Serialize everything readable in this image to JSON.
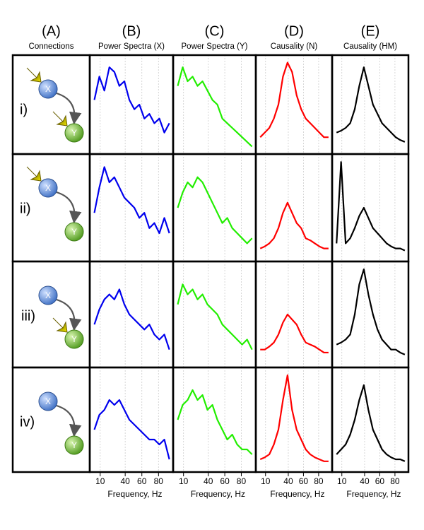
{
  "figure": {
    "columns": [
      {
        "letter": "(A)",
        "title": "Connections"
      },
      {
        "letter": "(B)",
        "title": "Power Spectra (X)"
      },
      {
        "letter": "(C)",
        "title": "Power Spectra (Y)"
      },
      {
        "letter": "(D)",
        "title": "Causality (N)"
      },
      {
        "letter": "(E)",
        "title": "Causality (HM)"
      }
    ],
    "rows": [
      "i)",
      "ii)",
      "iii)",
      "iv)"
    ],
    "nodes": [
      "X",
      "Y"
    ]
  },
  "chart_data": [
    {
      "type": "line",
      "color": "#0000ee",
      "x": [
        3,
        9,
        15,
        21,
        27,
        33,
        39,
        45,
        51,
        57,
        63,
        69,
        75,
        81,
        87,
        93
      ],
      "values": [
        0.55,
        0.8,
        0.65,
        0.9,
        0.85,
        0.7,
        0.75,
        0.55,
        0.45,
        0.5,
        0.35,
        0.4,
        0.3,
        0.35,
        0.2,
        0.3
      ],
      "xlim": [
        0,
        95
      ],
      "ylim": [
        0,
        1
      ],
      "xticks": [
        10,
        40,
        60,
        80
      ],
      "grid": true
    },
    {
      "type": "line",
      "color": "#22ee00",
      "x": [
        3,
        9,
        15,
        21,
        27,
        33,
        39,
        45,
        51,
        57,
        63,
        69,
        75,
        81,
        87,
        93
      ],
      "values": [
        0.7,
        0.9,
        0.75,
        0.8,
        0.7,
        0.75,
        0.65,
        0.55,
        0.5,
        0.35,
        0.3,
        0.25,
        0.2,
        0.15,
        0.1,
        0.05
      ],
      "xlim": [
        0,
        95
      ],
      "ylim": [
        0,
        1
      ],
      "xticks": [
        10,
        40,
        60,
        80
      ],
      "grid": true
    },
    {
      "type": "line",
      "color": "#ff0000",
      "x": [
        3,
        9,
        15,
        21,
        27,
        33,
        39,
        45,
        51,
        57,
        63,
        69,
        75,
        81,
        87,
        93
      ],
      "values": [
        0.15,
        0.2,
        0.25,
        0.35,
        0.5,
        0.8,
        0.95,
        0.85,
        0.6,
        0.45,
        0.35,
        0.3,
        0.25,
        0.2,
        0.15,
        0.15
      ],
      "xlim": [
        0,
        95
      ],
      "ylim": [
        0,
        1
      ],
      "xticks": [
        10,
        40,
        60,
        80
      ],
      "grid": true
    },
    {
      "type": "line",
      "color": "#000000",
      "x": [
        3,
        9,
        15,
        21,
        27,
        33,
        39,
        45,
        51,
        57,
        63,
        69,
        75,
        81,
        87,
        93
      ],
      "values": [
        0.2,
        0.22,
        0.25,
        0.3,
        0.45,
        0.7,
        0.9,
        0.7,
        0.5,
        0.4,
        0.3,
        0.25,
        0.2,
        0.15,
        0.12,
        0.1
      ],
      "xlim": [
        0,
        95
      ],
      "ylim": [
        0,
        1
      ],
      "xticks": [
        10,
        40,
        60,
        80
      ],
      "grid": true
    },
    {
      "type": "line",
      "color": "#0000ee",
      "x": [
        3,
        9,
        15,
        21,
        27,
        33,
        39,
        45,
        51,
        57,
        63,
        69,
        75,
        81,
        87,
        93
      ],
      "values": [
        0.45,
        0.7,
        0.9,
        0.75,
        0.8,
        0.7,
        0.6,
        0.55,
        0.5,
        0.4,
        0.45,
        0.3,
        0.35,
        0.25,
        0.4,
        0.25
      ],
      "xlim": [
        0,
        95
      ],
      "ylim": [
        0,
        1
      ],
      "xticks": [
        10,
        40,
        60,
        80
      ],
      "grid": true
    },
    {
      "type": "line",
      "color": "#22ee00",
      "x": [
        3,
        9,
        15,
        21,
        27,
        33,
        39,
        45,
        51,
        57,
        63,
        69,
        75,
        81,
        87,
        93
      ],
      "values": [
        0.5,
        0.65,
        0.75,
        0.7,
        0.8,
        0.75,
        0.65,
        0.55,
        0.45,
        0.35,
        0.4,
        0.3,
        0.25,
        0.2,
        0.15,
        0.2
      ],
      "xlim": [
        0,
        95
      ],
      "ylim": [
        0,
        1
      ],
      "xticks": [
        10,
        40,
        60,
        80
      ],
      "grid": true
    },
    {
      "type": "line",
      "color": "#ff0000",
      "x": [
        3,
        9,
        15,
        21,
        27,
        33,
        39,
        45,
        51,
        57,
        63,
        69,
        75,
        81,
        87,
        93
      ],
      "values": [
        0.1,
        0.12,
        0.15,
        0.2,
        0.3,
        0.45,
        0.55,
        0.45,
        0.35,
        0.3,
        0.2,
        0.18,
        0.15,
        0.12,
        0.1,
        0.1
      ],
      "xlim": [
        0,
        95
      ],
      "ylim": [
        0,
        1
      ],
      "xticks": [
        10,
        40,
        60,
        80
      ],
      "grid": true
    },
    {
      "type": "line",
      "color": "#000000",
      "x": [
        3,
        9,
        15,
        21,
        27,
        33,
        39,
        45,
        51,
        57,
        63,
        69,
        75,
        81,
        87,
        93
      ],
      "values": [
        0.15,
        0.95,
        0.15,
        0.2,
        0.3,
        0.42,
        0.5,
        0.4,
        0.3,
        0.25,
        0.2,
        0.15,
        0.12,
        0.1,
        0.1,
        0.08
      ],
      "xlim": [
        0,
        95
      ],
      "ylim": [
        0,
        1
      ],
      "xticks": [
        10,
        40,
        60,
        80
      ],
      "grid": true
    },
    {
      "type": "line",
      "color": "#0000ee",
      "x": [
        3,
        9,
        15,
        21,
        27,
        33,
        39,
        45,
        51,
        57,
        63,
        69,
        75,
        81,
        87,
        93
      ],
      "values": [
        0.4,
        0.55,
        0.65,
        0.7,
        0.65,
        0.75,
        0.6,
        0.5,
        0.45,
        0.4,
        0.35,
        0.4,
        0.3,
        0.25,
        0.3,
        0.15
      ],
      "xlim": [
        0,
        95
      ],
      "ylim": [
        0,
        1
      ],
      "xticks": [
        10,
        40,
        60,
        80
      ],
      "grid": true
    },
    {
      "type": "line",
      "color": "#22ee00",
      "x": [
        3,
        9,
        15,
        21,
        27,
        33,
        39,
        45,
        51,
        57,
        63,
        69,
        75,
        81,
        87,
        93
      ],
      "values": [
        0.6,
        0.8,
        0.7,
        0.75,
        0.65,
        0.7,
        0.6,
        0.55,
        0.5,
        0.4,
        0.35,
        0.3,
        0.25,
        0.2,
        0.25,
        0.15
      ],
      "xlim": [
        0,
        95
      ],
      "ylim": [
        0,
        1
      ],
      "xticks": [
        10,
        40,
        60,
        80
      ],
      "grid": true
    },
    {
      "type": "line",
      "color": "#ff0000",
      "x": [
        3,
        9,
        15,
        21,
        27,
        33,
        39,
        45,
        51,
        57,
        63,
        69,
        75,
        81,
        87,
        93
      ],
      "values": [
        0.15,
        0.15,
        0.18,
        0.22,
        0.3,
        0.42,
        0.5,
        0.45,
        0.4,
        0.3,
        0.22,
        0.2,
        0.18,
        0.15,
        0.12,
        0.12
      ],
      "xlim": [
        0,
        95
      ],
      "ylim": [
        0,
        1
      ],
      "xticks": [
        10,
        40,
        60,
        80
      ],
      "grid": true
    },
    {
      "type": "line",
      "color": "#000000",
      "x": [
        3,
        9,
        15,
        21,
        27,
        33,
        39,
        45,
        51,
        57,
        63,
        69,
        75,
        81,
        87,
        93
      ],
      "values": [
        0.2,
        0.22,
        0.25,
        0.3,
        0.5,
        0.8,
        0.95,
        0.7,
        0.5,
        0.35,
        0.25,
        0.2,
        0.15,
        0.15,
        0.12,
        0.1
      ],
      "xlim": [
        0,
        95
      ],
      "ylim": [
        0,
        1
      ],
      "xticks": [
        10,
        40,
        60,
        80
      ],
      "grid": true
    },
    {
      "type": "line",
      "color": "#0000ee",
      "x": [
        3,
        9,
        15,
        21,
        27,
        33,
        39,
        45,
        51,
        57,
        63,
        69,
        75,
        81,
        87,
        93
      ],
      "values": [
        0.4,
        0.55,
        0.6,
        0.7,
        0.65,
        0.7,
        0.6,
        0.5,
        0.45,
        0.4,
        0.35,
        0.3,
        0.3,
        0.25,
        0.3,
        0.1
      ],
      "xlim": [
        0,
        95
      ],
      "ylim": [
        0,
        1
      ],
      "xticks": [
        10,
        40,
        60,
        80
      ],
      "grid": true,
      "xlabel": "Frequency, Hz"
    },
    {
      "type": "line",
      "color": "#22ee00",
      "x": [
        3,
        9,
        15,
        21,
        27,
        33,
        39,
        45,
        51,
        57,
        63,
        69,
        75,
        81,
        87,
        93
      ],
      "values": [
        0.5,
        0.65,
        0.7,
        0.8,
        0.7,
        0.75,
        0.6,
        0.65,
        0.5,
        0.4,
        0.3,
        0.35,
        0.25,
        0.2,
        0.2,
        0.15
      ],
      "xlim": [
        0,
        95
      ],
      "ylim": [
        0,
        1
      ],
      "xticks": [
        10,
        40,
        60,
        80
      ],
      "grid": true,
      "xlabel": "Frequency, Hz"
    },
    {
      "type": "line",
      "color": "#ff0000",
      "x": [
        3,
        9,
        15,
        21,
        27,
        33,
        39,
        45,
        51,
        57,
        63,
        69,
        75,
        81,
        87,
        93
      ],
      "values": [
        0.1,
        0.12,
        0.15,
        0.25,
        0.4,
        0.7,
        0.95,
        0.6,
        0.4,
        0.3,
        0.2,
        0.15,
        0.12,
        0.1,
        0.08,
        0.08
      ],
      "xlim": [
        0,
        95
      ],
      "ylim": [
        0,
        1
      ],
      "xticks": [
        10,
        40,
        60,
        80
      ],
      "grid": true,
      "xlabel": "Frequency, Hz"
    },
    {
      "type": "line",
      "color": "#000000",
      "x": [
        3,
        9,
        15,
        21,
        27,
        33,
        39,
        45,
        51,
        57,
        63,
        69,
        75,
        81,
        87,
        93
      ],
      "values": [
        0.15,
        0.2,
        0.25,
        0.35,
        0.5,
        0.7,
        0.85,
        0.6,
        0.4,
        0.3,
        0.2,
        0.15,
        0.12,
        0.1,
        0.1,
        0.08
      ],
      "xlim": [
        0,
        95
      ],
      "ylim": [
        0,
        1
      ],
      "xticks": [
        10,
        40,
        60,
        80
      ],
      "grid": true,
      "xlabel": "Frequency, Hz"
    }
  ]
}
